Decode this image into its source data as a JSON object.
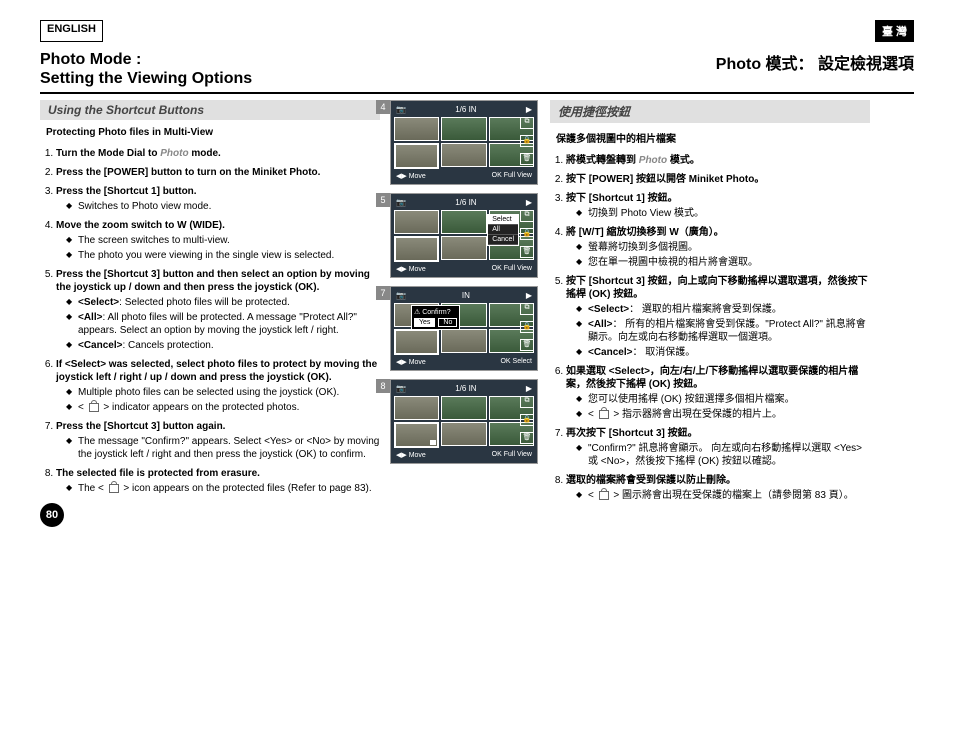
{
  "header": {
    "lang_en": "ENGLISH",
    "lang_tw": "臺 灣"
  },
  "titles": {
    "en1": "Photo Mode :",
    "en2": "Setting the Viewing Options",
    "cn": "Photo 模式： 設定檢視選項"
  },
  "sub": {
    "en": "Using the Shortcut Buttons",
    "cn": "使用捷徑按鈕"
  },
  "subhead": {
    "en": "Protecting Photo files in Multi-View",
    "cn": "保護多個視圖中的相片檔案"
  },
  "en_steps": [
    {
      "t": "Turn the Mode Dial to <i class='linked'>Photo</i> mode."
    },
    {
      "t": "Press the [POWER] button to turn on the Miniket Photo."
    },
    {
      "t": "Press the [Shortcut 1] button.",
      "s": [
        "Switches to Photo view mode."
      ]
    },
    {
      "t": "Move the zoom switch to W (WIDE).",
      "s": [
        "The screen switches to multi-view.",
        "The photo you were viewing in the single view is selected."
      ]
    },
    {
      "t": "Press the [Shortcut 3] button and then select an option by moving the joystick up / down and then press the joystick (OK).",
      "s": [
        "<b>&lt;Select&gt;</b>: Selected photo files will be protected.",
        "<b>&lt;All&gt;</b>: All photo files will be protected. A message \"Protect All?\" appears. Select an option by moving the joystick left / right.",
        "<b>&lt;Cancel&gt;</b>: Cancels protection."
      ]
    },
    {
      "t": "If &lt;Select&gt; was selected, select photo files to protect by moving the joystick left / right / up / down and press the joystick (OK).",
      "s": [
        "Multiple photo files can be selected using the joystick (OK).",
        "< <span class='lock-icon'></span> > indicator appears on the protected photos."
      ]
    },
    {
      "t": "Press the [Shortcut 3] button again.",
      "s": [
        "The message \"Confirm?\" appears. Select &lt;Yes&gt; or &lt;No&gt; by moving the joystick left / right and then press the joystick (OK) to confirm."
      ]
    },
    {
      "t": "The selected file is protected from erasure.",
      "s": [
        "The < <span class='lock-icon'></span> > icon appears on the protected files (Refer to page 83)."
      ]
    }
  ],
  "cn_steps": [
    {
      "t": "將模式轉盤轉到 <i class='linked'>Photo</i> 模式。"
    },
    {
      "t": "按下 [POWER] 按鈕以開啓 Miniket Photo。"
    },
    {
      "t": "按下 [Shortcut 1] 按鈕。",
      "s": [
        "切換到 Photo View 模式。"
      ]
    },
    {
      "t": "將 [W/T] 縮放切換移到 W（廣角）。",
      "s": [
        "螢幕將切換到多個視圖。",
        "您在單一視圖中檢視的相片將會選取。"
      ]
    },
    {
      "t": "按下 [Shortcut 3] 按鈕，向上或向下移動搖桿以選取選項，然後按下搖桿 (OK) 按鈕。",
      "s": [
        "<b>&lt;Select&gt;</b>： 選取的相片檔案將會受到保護。",
        "<b>&lt;All&gt;</b>： 所有的相片檔案將會受到保護。\"Protect All?\" 訊息將會顯示。向左或向右移動搖桿選取一個選項。",
        "<b>&lt;Cancel&gt;</b>： 取消保護。"
      ]
    },
    {
      "t": "如果選取 &lt;Select&gt;，向左/右/上/下移動搖桿以選取要保護的相片檔案，然後按下搖桿 (OK) 按鈕。",
      "s": [
        "您可以使用搖桿 (OK) 按鈕選擇多個相片檔案。",
        "< <span class='lock-icon'></span> > 指示器將會出現在受保護的相片上。"
      ]
    },
    {
      "t": "再次按下 [Shortcut 3] 按鈕。",
      "s": [
        "\"Confirm?\" 訊息將會顯示。 向左或向右移動搖桿以選取 &lt;Yes&gt; 或 &lt;No&gt;，然後按下搖桿 (OK) 按鈕以確認。"
      ]
    },
    {
      "t": "選取的檔案將會受到保護以防止刪除。",
      "s": [
        "< <span class='lock-icon'></span> > 圖示將會出現在受保護的檔案上（請參閱第 83 頁）。"
      ]
    }
  ],
  "page": "80",
  "screens": [
    {
      "n": "4",
      "top": "1/6",
      "bot_l": "Move",
      "bot_r": "Full View"
    },
    {
      "n": "5",
      "top": "1/6",
      "bot_l": "Move",
      "bot_r": "Full View",
      "menu": [
        "Select",
        "All",
        "Cancel"
      ]
    },
    {
      "n": "7",
      "bot_l": "Move",
      "bot_r": "Select",
      "confirm": true,
      "yes": "Yes",
      "no": "No",
      "ctitle": "Confirm?"
    },
    {
      "n": "8",
      "top": "1/6",
      "bot_l": "Move",
      "bot_r": "Full View",
      "lock": true
    }
  ]
}
